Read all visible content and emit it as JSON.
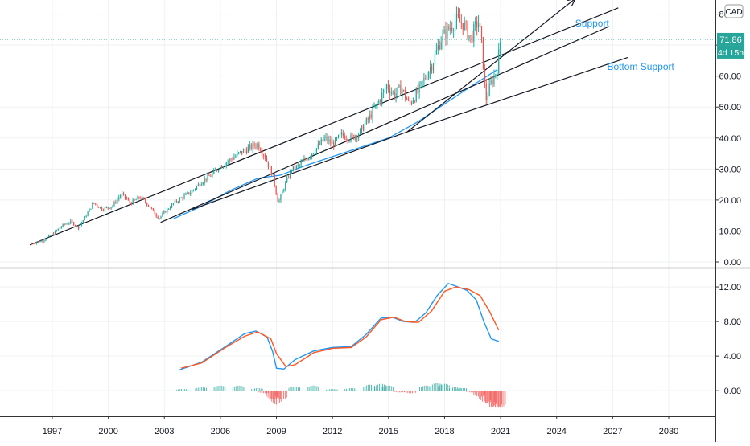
{
  "chart_data": [
    {
      "type": "candlestick",
      "currency_badge": "CAD",
      "x_tick_labels": [
        "1997",
        "2000",
        "2003",
        "2006",
        "2009",
        "2012",
        "2015",
        "2018",
        "2021",
        "2024",
        "2027",
        "2030"
      ],
      "x_tick_years": [
        1997,
        2000,
        2003,
        2006,
        2009,
        2012,
        2015,
        2018,
        2021,
        2024,
        2027,
        2030
      ],
      "y_tick_labels": [
        "0.00",
        "10.00",
        "20.00",
        "30.00",
        "40.00",
        "50.00",
        "60.00",
        "70.00",
        "80.00"
      ],
      "y_tick_values": [
        0,
        10,
        20,
        30,
        40,
        50,
        60,
        70,
        80
      ],
      "ylim": [
        0,
        83
      ],
      "xlim": [
        1994.2,
        2032.5
      ],
      "grid": true,
      "price_path": [
        [
          1995.9,
          6
        ],
        [
          1996.5,
          7
        ],
        [
          1997.0,
          9
        ],
        [
          1997.6,
          12
        ],
        [
          1998.0,
          13
        ],
        [
          1998.4,
          11
        ],
        [
          1998.8,
          15
        ],
        [
          1999.2,
          19
        ],
        [
          1999.7,
          17
        ],
        [
          2000.2,
          18
        ],
        [
          2000.7,
          22
        ],
        [
          2001.2,
          19
        ],
        [
          2001.7,
          21
        ],
        [
          2002.2,
          18
        ],
        [
          2002.7,
          14
        ],
        [
          2003.0,
          16
        ],
        [
          2003.5,
          19
        ],
        [
          2004.0,
          21
        ],
        [
          2004.5,
          23
        ],
        [
          2005.0,
          26
        ],
        [
          2005.5,
          28
        ],
        [
          2006.0,
          31
        ],
        [
          2006.5,
          33
        ],
        [
          2007.0,
          35
        ],
        [
          2007.6,
          37
        ],
        [
          2008.0,
          38
        ],
        [
          2008.4,
          34
        ],
        [
          2008.8,
          28
        ],
        [
          2009.1,
          19
        ],
        [
          2009.4,
          24
        ],
        [
          2009.8,
          30
        ],
        [
          2010.2,
          31
        ],
        [
          2010.7,
          34
        ],
        [
          2011.2,
          37
        ],
        [
          2011.6,
          40
        ],
        [
          2012.0,
          38
        ],
        [
          2012.5,
          41
        ],
        [
          2013.0,
          40
        ],
        [
          2013.5,
          42
        ],
        [
          2014.0,
          47
        ],
        [
          2014.5,
          52
        ],
        [
          2014.9,
          57
        ],
        [
          2015.3,
          54
        ],
        [
          2015.7,
          56
        ],
        [
          2016.1,
          51
        ],
        [
          2016.6,
          55
        ],
        [
          2017.0,
          60
        ],
        [
          2017.4,
          65
        ],
        [
          2017.8,
          72
        ],
        [
          2018.2,
          75
        ],
        [
          2018.6,
          78
        ],
        [
          2019.0,
          77
        ],
        [
          2019.4,
          72
        ],
        [
          2019.8,
          78
        ],
        [
          2020.0,
          70
        ],
        [
          2020.2,
          52
        ],
        [
          2020.5,
          58
        ],
        [
          2020.8,
          62
        ],
        [
          2021.0,
          71.86
        ]
      ],
      "overlay_lines": [
        {
          "name": "",
          "points": [
            [
              1995.8,
              5.5
            ],
            [
              2027.3,
              82
            ]
          ]
        },
        {
          "name": "",
          "points": [
            [
              2002.8,
              12.8
            ],
            [
              2026.8,
              76
            ]
          ]
        },
        {
          "name": "",
          "points": [
            [
              2004.5,
              17
            ],
            [
              2016.0,
              42
            ],
            [
              2027.8,
              66
            ]
          ]
        },
        {
          "name": "",
          "points": [
            [
              2016.0,
              42
            ],
            [
              2025.0,
              85
            ]
          ]
        }
      ],
      "moving_average": [
        [
          2003.5,
          14
        ],
        [
          2005.0,
          18
        ],
        [
          2006.5,
          23
        ],
        [
          2008.0,
          27
        ],
        [
          2009.2,
          28
        ],
        [
          2010.5,
          31
        ],
        [
          2012.0,
          34
        ],
        [
          2013.5,
          37
        ],
        [
          2015.0,
          40
        ],
        [
          2016.5,
          45
        ],
        [
          2018.0,
          51
        ],
        [
          2019.5,
          57
        ],
        [
          2020.8,
          62
        ]
      ],
      "annotations": [
        {
          "text": "Support",
          "x": 2025.9,
          "y": 76
        },
        {
          "text": "Bottom Support",
          "x": 2028.5,
          "y": 62
        }
      ],
      "last_price_label": "71.86",
      "countdown_label": "4d 15h",
      "last_price": 71.86,
      "colors": {
        "up": "#26a69a",
        "down": "#ef5350",
        "line": "#131722",
        "annotation": "#2196f3",
        "price_line": "#26a69a"
      }
    },
    {
      "type": "line",
      "y_tick_labels": [
        "0.00",
        "4.00",
        "8.00",
        "12.00"
      ],
      "y_tick_values": [
        0,
        4,
        8,
        12
      ],
      "ylim": [
        -2.4,
        13.4
      ],
      "series": [
        {
          "name": "",
          "color": "#2196f3",
          "x": [
            2003.8,
            2005.0,
            2006.2,
            2007.3,
            2007.9,
            2008.5,
            2008.8,
            2009.0,
            2009.4,
            2010.0,
            2011.0,
            2012.0,
            2013.0,
            2013.8,
            2014.6,
            2015.2,
            2015.8,
            2016.4,
            2017.0,
            2017.6,
            2018.2,
            2018.6,
            2019.2,
            2019.7,
            2020.1,
            2020.5,
            2020.9
          ],
          "values": [
            2.4,
            3.3,
            5.0,
            6.6,
            6.9,
            6.2,
            4.5,
            2.6,
            2.5,
            3.6,
            4.6,
            5.0,
            5.1,
            6.5,
            8.4,
            8.5,
            8.0,
            7.9,
            9.0,
            11.0,
            12.4,
            12.1,
            11.6,
            10.5,
            8.0,
            6.0,
            5.7
          ]
        },
        {
          "name": "",
          "color": "#ff5722",
          "x": [
            2003.9,
            2005.0,
            2006.2,
            2007.3,
            2008.0,
            2008.7,
            2009.0,
            2009.5,
            2010.0,
            2011.0,
            2012.0,
            2013.0,
            2013.8,
            2014.6,
            2015.3,
            2015.9,
            2016.6,
            2017.3,
            2018.0,
            2018.6,
            2019.3,
            2019.9,
            2020.4,
            2020.9
          ],
          "values": [
            2.6,
            3.2,
            4.9,
            6.3,
            6.8,
            6.0,
            4.3,
            2.8,
            3.0,
            4.4,
            4.9,
            5.0,
            6.2,
            8.2,
            8.5,
            8.0,
            7.9,
            9.2,
            11.5,
            12.0,
            11.7,
            11.0,
            9.2,
            7.0
          ]
        }
      ],
      "histogram": {
        "x": [
          2004,
          2005,
          2006,
          2007,
          2008,
          2008.4,
          2008.8,
          2009.0,
          2009.3,
          2010,
          2011,
          2012,
          2013,
          2014,
          2014.6,
          2015.0,
          2015.6,
          2016.2,
          2017.0,
          2017.6,
          2018.0,
          2018.6,
          2019.0,
          2019.5,
          2019.9,
          2020.2,
          2020.5,
          2020.8,
          2021.0
        ],
        "values": [
          0.2,
          0.4,
          0.6,
          0.6,
          0.3,
          -0.3,
          -1.0,
          -1.6,
          -1.0,
          0.5,
          0.6,
          0.2,
          0.3,
          0.7,
          0.8,
          0.6,
          -0.2,
          -0.3,
          0.6,
          0.9,
          0.8,
          0.4,
          0.3,
          -0.2,
          -0.7,
          -1.4,
          -1.9,
          -2.0,
          -2.0
        ]
      }
    }
  ]
}
